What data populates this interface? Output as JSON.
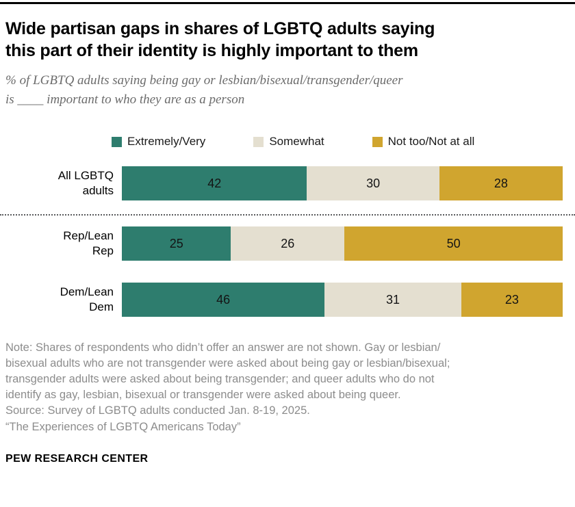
{
  "header": {
    "title": "Wide partisan gaps in shares of LGBTQ adults saying\nthis part of their identity is highly important to them",
    "subtitle": "% of LGBTQ adults saying being gay or lesbian/bisexual/transgender/queer\nis ____ important to who they are as a person"
  },
  "chart_data": {
    "type": "bar",
    "variant": "horizontal-stacked",
    "legend_position": "top",
    "grid": false,
    "xlim": [
      0,
      100
    ],
    "value_unit": "%",
    "legend": [
      {
        "label": "Extremely/Very",
        "color": "#2e7d6e"
      },
      {
        "label": "Somewhat",
        "color": "#e4dfd0"
      },
      {
        "label": "Not too/Not at all",
        "color": "#d0a52f"
      }
    ],
    "categories": [
      "All LGBTQ adults",
      "Rep/Lean Rep",
      "Dem/Lean Dem"
    ],
    "series": [
      {
        "name": "Extremely/Very",
        "values": [
          42,
          25,
          46
        ]
      },
      {
        "name": "Somewhat",
        "values": [
          30,
          26,
          31
        ]
      },
      {
        "name": "Not too/Not at all",
        "values": [
          28,
          50,
          23
        ]
      }
    ],
    "rows": [
      {
        "label": "All LGBTQ\nadults",
        "values": [
          42,
          30,
          28
        ],
        "divider_after": true
      },
      {
        "label": "Rep/Lean\nRep",
        "values": [
          25,
          26,
          50
        ],
        "divider_after": false
      },
      {
        "label": "Dem/Lean\nDem",
        "values": [
          46,
          31,
          23
        ],
        "divider_after": false
      }
    ]
  },
  "notes": {
    "note": "Note: Shares of respondents who didn’t offer an answer are not shown. Gay or lesbian/\nbisexual adults who are not transgender were asked about being gay or lesbian/bisexual;\ntransgender adults were asked about being transgender; and queer adults who do not\nidentify as gay, lesbian, bisexual or transgender were asked about being queer.",
    "source": "Source: Survey of LGBTQ adults conducted Jan. 8-19, 2025.",
    "report": "“The Experiences of LGBTQ Americans Today”"
  },
  "footer": {
    "brand": "PEW RESEARCH CENTER"
  }
}
